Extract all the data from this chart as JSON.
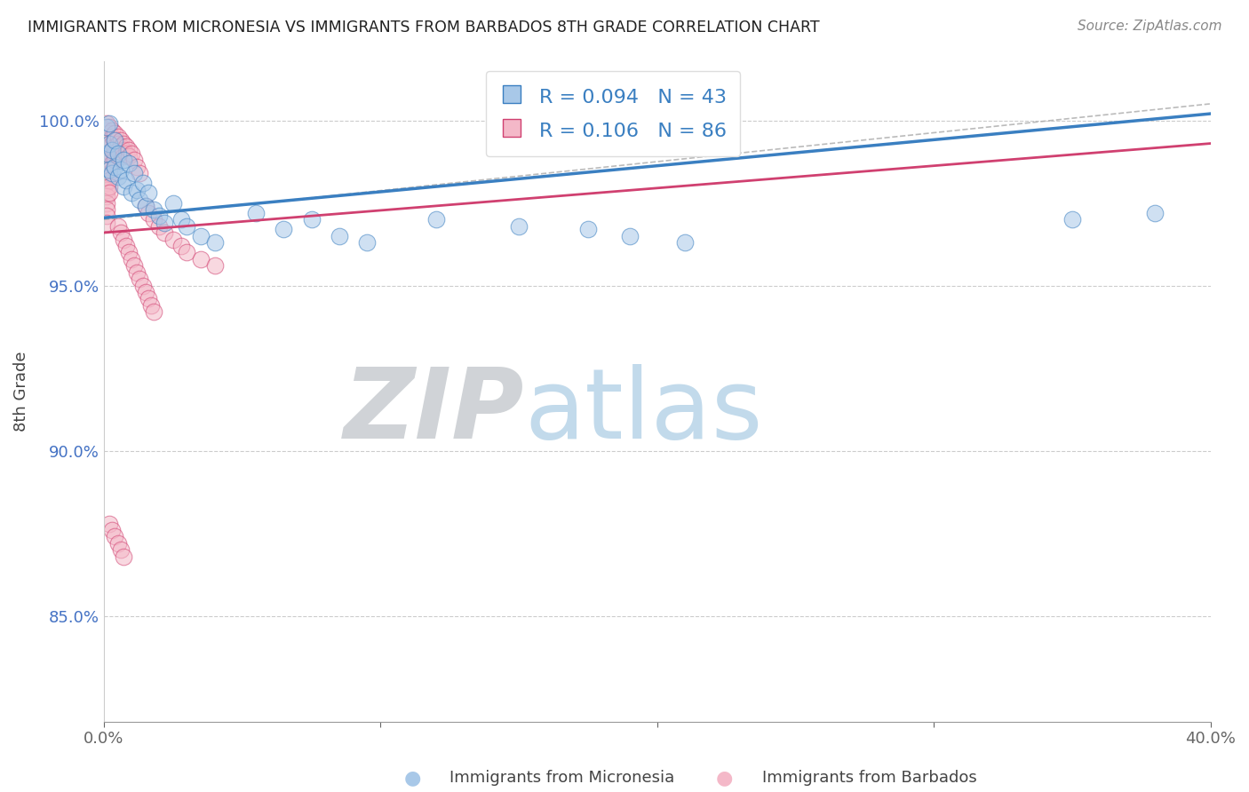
{
  "title": "IMMIGRANTS FROM MICRONESIA VS IMMIGRANTS FROM BARBADOS 8TH GRADE CORRELATION CHART",
  "source": "Source: ZipAtlas.com",
  "ylabel": "8th Grade",
  "legend_label1": "Immigrants from Micronesia",
  "legend_label2": "Immigrants from Barbados",
  "R1": 0.094,
  "N1": 43,
  "R2": 0.106,
  "N2": 86,
  "color1": "#a8c8e8",
  "color2": "#f4b8c8",
  "trend_color1": "#3a7fc1",
  "trend_color2": "#d04070",
  "xmin": 0.0,
  "xmax": 0.4,
  "ymin": 0.818,
  "ymax": 1.018,
  "yticks": [
    0.85,
    0.9,
    0.95,
    1.0
  ],
  "ytick_labels": [
    "85.0%",
    "90.0%",
    "95.0%",
    "100.0%"
  ],
  "background_color": "#ffffff",
  "mic_x": [
    0.001,
    0.001,
    0.002,
    0.002,
    0.002,
    0.003,
    0.003,
    0.004,
    0.004,
    0.005,
    0.005,
    0.006,
    0.007,
    0.007,
    0.008,
    0.009,
    0.01,
    0.011,
    0.012,
    0.013,
    0.014,
    0.015,
    0.016,
    0.018,
    0.02,
    0.022,
    0.025,
    0.028,
    0.03,
    0.035,
    0.04,
    0.055,
    0.065,
    0.075,
    0.085,
    0.095,
    0.12,
    0.15,
    0.175,
    0.19,
    0.21,
    0.35,
    0.38
  ],
  "mic_y": [
    0.99,
    0.998,
    0.985,
    0.993,
    0.999,
    0.984,
    0.991,
    0.986,
    0.994,
    0.983,
    0.99,
    0.985,
    0.98,
    0.988,
    0.982,
    0.987,
    0.978,
    0.984,
    0.979,
    0.976,
    0.981,
    0.974,
    0.978,
    0.973,
    0.971,
    0.969,
    0.975,
    0.97,
    0.968,
    0.965,
    0.963,
    0.972,
    0.967,
    0.97,
    0.965,
    0.963,
    0.97,
    0.968,
    0.967,
    0.965,
    0.963,
    0.97,
    0.972
  ],
  "bar_x": [
    0.001,
    0.001,
    0.001,
    0.001,
    0.001,
    0.001,
    0.001,
    0.001,
    0.001,
    0.001,
    0.001,
    0.001,
    0.001,
    0.001,
    0.001,
    0.001,
    0.002,
    0.002,
    0.002,
    0.002,
    0.002,
    0.002,
    0.002,
    0.002,
    0.002,
    0.002,
    0.002,
    0.003,
    0.003,
    0.003,
    0.003,
    0.003,
    0.003,
    0.004,
    0.004,
    0.004,
    0.004,
    0.004,
    0.005,
    0.005,
    0.005,
    0.005,
    0.006,
    0.006,
    0.006,
    0.007,
    0.007,
    0.007,
    0.008,
    0.008,
    0.009,
    0.009,
    0.01,
    0.011,
    0.012,
    0.013,
    0.015,
    0.016,
    0.018,
    0.02,
    0.022,
    0.025,
    0.028,
    0.03,
    0.035,
    0.04,
    0.005,
    0.006,
    0.007,
    0.008,
    0.009,
    0.01,
    0.011,
    0.012,
    0.013,
    0.014,
    0.015,
    0.016,
    0.017,
    0.018,
    0.002,
    0.003,
    0.004,
    0.005,
    0.006,
    0.007
  ],
  "bar_y": [
    0.999,
    0.997,
    0.995,
    0.993,
    0.991,
    0.989,
    0.987,
    0.985,
    0.983,
    0.981,
    0.979,
    0.977,
    0.975,
    0.973,
    0.971,
    0.969,
    0.998,
    0.996,
    0.994,
    0.992,
    0.99,
    0.988,
    0.986,
    0.984,
    0.982,
    0.98,
    0.978,
    0.997,
    0.995,
    0.993,
    0.991,
    0.989,
    0.987,
    0.996,
    0.994,
    0.992,
    0.99,
    0.988,
    0.995,
    0.993,
    0.991,
    0.989,
    0.994,
    0.992,
    0.99,
    0.993,
    0.991,
    0.989,
    0.992,
    0.99,
    0.991,
    0.989,
    0.99,
    0.988,
    0.986,
    0.984,
    0.974,
    0.972,
    0.97,
    0.968,
    0.966,
    0.964,
    0.962,
    0.96,
    0.958,
    0.956,
    0.968,
    0.966,
    0.964,
    0.962,
    0.96,
    0.958,
    0.956,
    0.954,
    0.952,
    0.95,
    0.948,
    0.946,
    0.944,
    0.942,
    0.878,
    0.876,
    0.874,
    0.872,
    0.87,
    0.868
  ]
}
